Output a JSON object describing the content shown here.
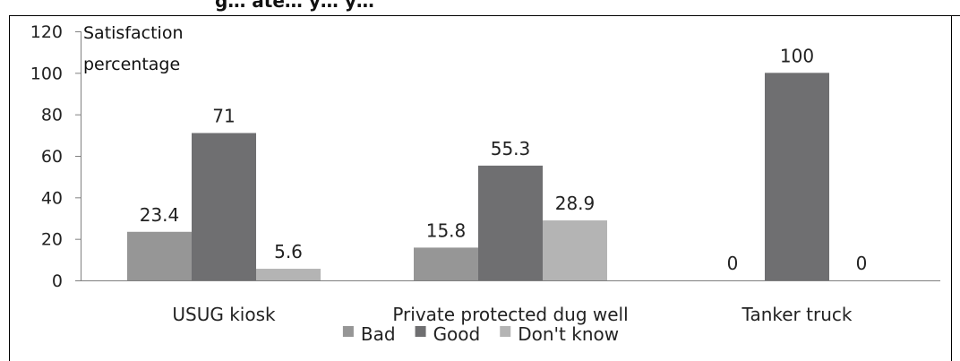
{
  "chart_data": {
    "type": "bar",
    "title_fragment": "g… ate… y… y…",
    "ylabel_lines": [
      "Satisfaction",
      "percentage"
    ],
    "xlabel": "",
    "categories": [
      "USUG kiosk",
      "Private protected dug well",
      "Tanker truck"
    ],
    "series": [
      {
        "name": "Bad",
        "values": [
          23.4,
          15.8,
          0
        ],
        "labels": [
          "23.4",
          "15.8",
          "0"
        ],
        "color": "#969696"
      },
      {
        "name": "Good",
        "values": [
          71,
          55.3,
          100
        ],
        "labels": [
          "71",
          "55.3",
          "100"
        ],
        "color": "#6f6f71"
      },
      {
        "name": "Don't know",
        "values": [
          5.6,
          28.9,
          0
        ],
        "labels": [
          "5.6",
          "28.9",
          "0"
        ],
        "color": "#b4b4b4"
      }
    ],
    "y_ticks": [
      "0",
      "20",
      "40",
      "60",
      "80",
      "100",
      "120"
    ],
    "ylim": [
      0,
      120
    ],
    "grid": false,
    "legend_position": "bottom-center"
  }
}
